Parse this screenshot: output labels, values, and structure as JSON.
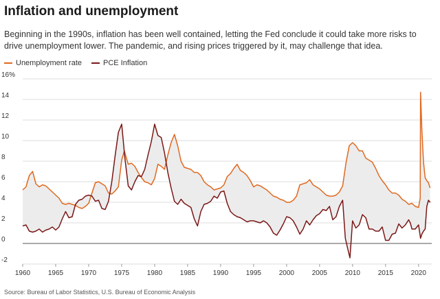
{
  "title": "Inflation and unemployment",
  "subtitle": "Beginning in the 1990s, inflation has been well contained, letting the Fed conclude it could take more risks to drive unemployment lower. The pandemic, and rising prices triggered by it, may challenge that idea.",
  "source": "Source: Bureau of Labor Statistics, U.S. Bureau of Economic Analysis",
  "colors": {
    "unemployment": "#e0681e",
    "inflation": "#7a1616",
    "fill": "#ececec",
    "grid": "#dddddd",
    "zero": "#555555"
  },
  "chart_data": {
    "type": "line",
    "title": "Inflation and unemployment",
    "xlabel": "",
    "ylabel": "",
    "xlim": [
      1960,
      2022
    ],
    "ylim": [
      -2,
      16
    ],
    "x_ticks": [
      "1960",
      "1965",
      "1970",
      "1975",
      "1980",
      "1985",
      "1990",
      "1995",
      "2000",
      "2005",
      "2010",
      "2015",
      "2020"
    ],
    "y_ticks": [
      "16%",
      "14",
      "12",
      "10",
      "8",
      "6",
      "4",
      "2",
      "0",
      "-2"
    ],
    "grid": true,
    "legend_position": "top-left",
    "shaded_between_series": true,
    "series": [
      {
        "name": "Unemployment rate",
        "color": "#e0681e",
        "points": [
          [
            1960.0,
            5.2
          ],
          [
            1960.5,
            5.5
          ],
          [
            1961.0,
            6.6
          ],
          [
            1961.5,
            7.0
          ],
          [
            1962.0,
            5.8
          ],
          [
            1962.5,
            5.5
          ],
          [
            1963.0,
            5.7
          ],
          [
            1963.5,
            5.6
          ],
          [
            1964.0,
            5.3
          ],
          [
            1964.5,
            5.0
          ],
          [
            1965.0,
            4.7
          ],
          [
            1965.5,
            4.4
          ],
          [
            1966.0,
            3.9
          ],
          [
            1966.5,
            3.8
          ],
          [
            1967.0,
            3.9
          ],
          [
            1967.5,
            3.8
          ],
          [
            1968.0,
            3.7
          ],
          [
            1968.5,
            3.5
          ],
          [
            1969.0,
            3.4
          ],
          [
            1969.5,
            3.6
          ],
          [
            1970.0,
            3.9
          ],
          [
            1970.5,
            4.9
          ],
          [
            1971.0,
            5.9
          ],
          [
            1971.5,
            6.0
          ],
          [
            1972.0,
            5.8
          ],
          [
            1972.5,
            5.6
          ],
          [
            1973.0,
            4.9
          ],
          [
            1973.5,
            4.8
          ],
          [
            1974.0,
            5.1
          ],
          [
            1974.5,
            5.5
          ],
          [
            1975.0,
            8.1
          ],
          [
            1975.4,
            9.0
          ],
          [
            1976.0,
            7.7
          ],
          [
            1976.5,
            7.8
          ],
          [
            1977.0,
            7.5
          ],
          [
            1977.5,
            6.9
          ],
          [
            1978.0,
            6.4
          ],
          [
            1978.5,
            6.0
          ],
          [
            1979.0,
            5.9
          ],
          [
            1979.5,
            5.7
          ],
          [
            1980.0,
            6.3
          ],
          [
            1980.5,
            7.7
          ],
          [
            1981.0,
            7.5
          ],
          [
            1981.5,
            7.2
          ],
          [
            1982.0,
            8.6
          ],
          [
            1982.5,
            9.8
          ],
          [
            1983.0,
            10.6
          ],
          [
            1983.5,
            9.5
          ],
          [
            1984.0,
            8.0
          ],
          [
            1984.5,
            7.4
          ],
          [
            1985.0,
            7.3
          ],
          [
            1985.5,
            7.2
          ],
          [
            1986.0,
            6.9
          ],
          [
            1986.5,
            6.9
          ],
          [
            1987.0,
            6.6
          ],
          [
            1987.5,
            6.0
          ],
          [
            1988.0,
            5.7
          ],
          [
            1988.5,
            5.5
          ],
          [
            1989.0,
            5.2
          ],
          [
            1989.5,
            5.3
          ],
          [
            1990.0,
            5.4
          ],
          [
            1990.5,
            5.7
          ],
          [
            1991.0,
            6.5
          ],
          [
            1991.5,
            6.8
          ],
          [
            1992.0,
            7.3
          ],
          [
            1992.5,
            7.7
          ],
          [
            1993.0,
            7.1
          ],
          [
            1993.5,
            6.9
          ],
          [
            1994.0,
            6.6
          ],
          [
            1994.5,
            6.1
          ],
          [
            1995.0,
            5.5
          ],
          [
            1995.5,
            5.7
          ],
          [
            1996.0,
            5.6
          ],
          [
            1996.5,
            5.4
          ],
          [
            1997.0,
            5.2
          ],
          [
            1997.5,
            4.9
          ],
          [
            1998.0,
            4.6
          ],
          [
            1998.5,
            4.5
          ],
          [
            1999.0,
            4.3
          ],
          [
            1999.5,
            4.2
          ],
          [
            2000.0,
            4.0
          ],
          [
            2000.5,
            4.0
          ],
          [
            2001.0,
            4.2
          ],
          [
            2001.5,
            4.6
          ],
          [
            2002.0,
            5.7
          ],
          [
            2002.5,
            5.8
          ],
          [
            2003.0,
            5.9
          ],
          [
            2003.5,
            6.2
          ],
          [
            2004.0,
            5.7
          ],
          [
            2004.5,
            5.5
          ],
          [
            2005.0,
            5.3
          ],
          [
            2005.5,
            5.0
          ],
          [
            2006.0,
            4.7
          ],
          [
            2006.5,
            4.6
          ],
          [
            2007.0,
            4.6
          ],
          [
            2007.5,
            4.7
          ],
          [
            2008.0,
            5.0
          ],
          [
            2008.5,
            5.6
          ],
          [
            2009.0,
            7.8
          ],
          [
            2009.5,
            9.5
          ],
          [
            2010.0,
            9.8
          ],
          [
            2010.5,
            9.5
          ],
          [
            2011.0,
            9.0
          ],
          [
            2011.5,
            9.0
          ],
          [
            2012.0,
            8.3
          ],
          [
            2012.5,
            8.1
          ],
          [
            2013.0,
            7.9
          ],
          [
            2013.5,
            7.3
          ],
          [
            2014.0,
            6.6
          ],
          [
            2014.5,
            6.1
          ],
          [
            2015.0,
            5.7
          ],
          [
            2015.5,
            5.2
          ],
          [
            2016.0,
            4.9
          ],
          [
            2016.5,
            4.9
          ],
          [
            2017.0,
            4.7
          ],
          [
            2017.5,
            4.3
          ],
          [
            2018.0,
            4.1
          ],
          [
            2018.5,
            3.8
          ],
          [
            2019.0,
            3.9
          ],
          [
            2019.5,
            3.6
          ],
          [
            2020.0,
            3.5
          ],
          [
            2020.25,
            4.4
          ],
          [
            2020.3,
            14.7
          ],
          [
            2020.5,
            11.1
          ],
          [
            2020.75,
            7.9
          ],
          [
            2021.0,
            6.4
          ],
          [
            2021.25,
            6.1
          ],
          [
            2021.5,
            5.9
          ],
          [
            2021.75,
            5.4
          ]
        ]
      },
      {
        "name": "PCE Inflation",
        "color": "#7a1616",
        "points": [
          [
            1960.0,
            1.7
          ],
          [
            1960.5,
            1.8
          ],
          [
            1961.0,
            1.2
          ],
          [
            1961.5,
            1.1
          ],
          [
            1962.0,
            1.2
          ],
          [
            1962.5,
            1.4
          ],
          [
            1963.0,
            1.1
          ],
          [
            1963.5,
            1.3
          ],
          [
            1964.0,
            1.4
          ],
          [
            1964.5,
            1.6
          ],
          [
            1965.0,
            1.3
          ],
          [
            1965.5,
            1.6
          ],
          [
            1966.0,
            2.4
          ],
          [
            1966.5,
            3.1
          ],
          [
            1967.0,
            2.5
          ],
          [
            1967.5,
            2.6
          ],
          [
            1968.0,
            3.8
          ],
          [
            1968.5,
            4.2
          ],
          [
            1969.0,
            4.3
          ],
          [
            1969.5,
            4.6
          ],
          [
            1970.0,
            4.7
          ],
          [
            1970.5,
            4.6
          ],
          [
            1971.0,
            4.1
          ],
          [
            1971.5,
            4.2
          ],
          [
            1972.0,
            3.4
          ],
          [
            1972.5,
            3.3
          ],
          [
            1973.0,
            4.1
          ],
          [
            1973.5,
            6.0
          ],
          [
            1974.0,
            8.5
          ],
          [
            1974.5,
            10.8
          ],
          [
            1975.0,
            11.6
          ],
          [
            1975.5,
            8.2
          ],
          [
            1976.0,
            5.6
          ],
          [
            1976.5,
            5.2
          ],
          [
            1977.0,
            6.0
          ],
          [
            1977.5,
            6.6
          ],
          [
            1978.0,
            6.5
          ],
          [
            1978.5,
            7.2
          ],
          [
            1979.0,
            8.6
          ],
          [
            1979.5,
            9.9
          ],
          [
            1980.0,
            11.6
          ],
          [
            1980.5,
            10.5
          ],
          [
            1981.0,
            10.3
          ],
          [
            1981.5,
            8.8
          ],
          [
            1982.0,
            6.9
          ],
          [
            1982.5,
            5.4
          ],
          [
            1983.0,
            4.1
          ],
          [
            1983.5,
            3.8
          ],
          [
            1984.0,
            4.3
          ],
          [
            1984.5,
            3.9
          ],
          [
            1985.0,
            3.7
          ],
          [
            1985.5,
            3.5
          ],
          [
            1986.0,
            2.4
          ],
          [
            1986.5,
            1.7
          ],
          [
            1987.0,
            3.1
          ],
          [
            1987.5,
            3.8
          ],
          [
            1988.0,
            3.9
          ],
          [
            1988.5,
            4.1
          ],
          [
            1989.0,
            4.6
          ],
          [
            1989.5,
            4.4
          ],
          [
            1990.0,
            5.0
          ],
          [
            1990.5,
            5.1
          ],
          [
            1991.0,
            3.9
          ],
          [
            1991.5,
            3.1
          ],
          [
            1992.0,
            2.8
          ],
          [
            1992.5,
            2.6
          ],
          [
            1993.0,
            2.5
          ],
          [
            1993.5,
            2.3
          ],
          [
            1994.0,
            2.1
          ],
          [
            1994.5,
            2.2
          ],
          [
            1995.0,
            2.2
          ],
          [
            1995.5,
            2.1
          ],
          [
            1996.0,
            2.0
          ],
          [
            1996.5,
            2.2
          ],
          [
            1997.0,
            2.0
          ],
          [
            1997.5,
            1.6
          ],
          [
            1998.0,
            1.0
          ],
          [
            1998.5,
            0.8
          ],
          [
            1999.0,
            1.3
          ],
          [
            1999.5,
            1.9
          ],
          [
            2000.0,
            2.6
          ],
          [
            2000.5,
            2.5
          ],
          [
            2001.0,
            2.2
          ],
          [
            2001.5,
            1.6
          ],
          [
            2002.0,
            0.9
          ],
          [
            2002.5,
            1.4
          ],
          [
            2003.0,
            2.2
          ],
          [
            2003.5,
            1.8
          ],
          [
            2004.0,
            2.3
          ],
          [
            2004.5,
            2.7
          ],
          [
            2005.0,
            2.9
          ],
          [
            2005.5,
            3.3
          ],
          [
            2006.0,
            3.2
          ],
          [
            2006.5,
            3.6
          ],
          [
            2007.0,
            2.3
          ],
          [
            2007.5,
            2.6
          ],
          [
            2008.0,
            3.6
          ],
          [
            2008.5,
            4.2
          ],
          [
            2008.9,
            0.5
          ],
          [
            2009.3,
            -0.6
          ],
          [
            2009.6,
            -1.4
          ],
          [
            2010.0,
            2.2
          ],
          [
            2010.5,
            1.5
          ],
          [
            2011.0,
            1.8
          ],
          [
            2011.5,
            2.8
          ],
          [
            2012.0,
            2.5
          ],
          [
            2012.5,
            1.4
          ],
          [
            2013.0,
            1.4
          ],
          [
            2013.5,
            1.2
          ],
          [
            2014.0,
            1.2
          ],
          [
            2014.5,
            1.6
          ],
          [
            2015.0,
            0.3
          ],
          [
            2015.5,
            0.3
          ],
          [
            2016.0,
            0.9
          ],
          [
            2016.5,
            1.0
          ],
          [
            2017.0,
            1.9
          ],
          [
            2017.5,
            1.5
          ],
          [
            2018.0,
            1.8
          ],
          [
            2018.5,
            2.3
          ],
          [
            2018.75,
            2.0
          ],
          [
            2019.0,
            1.4
          ],
          [
            2019.5,
            1.4
          ],
          [
            2020.0,
            1.8
          ],
          [
            2020.3,
            0.5
          ],
          [
            2020.5,
            0.9
          ],
          [
            2020.75,
            1.2
          ],
          [
            2021.0,
            1.4
          ],
          [
            2021.25,
            3.6
          ],
          [
            2021.5,
            4.2
          ],
          [
            2021.75,
            4.0
          ]
        ]
      }
    ]
  }
}
